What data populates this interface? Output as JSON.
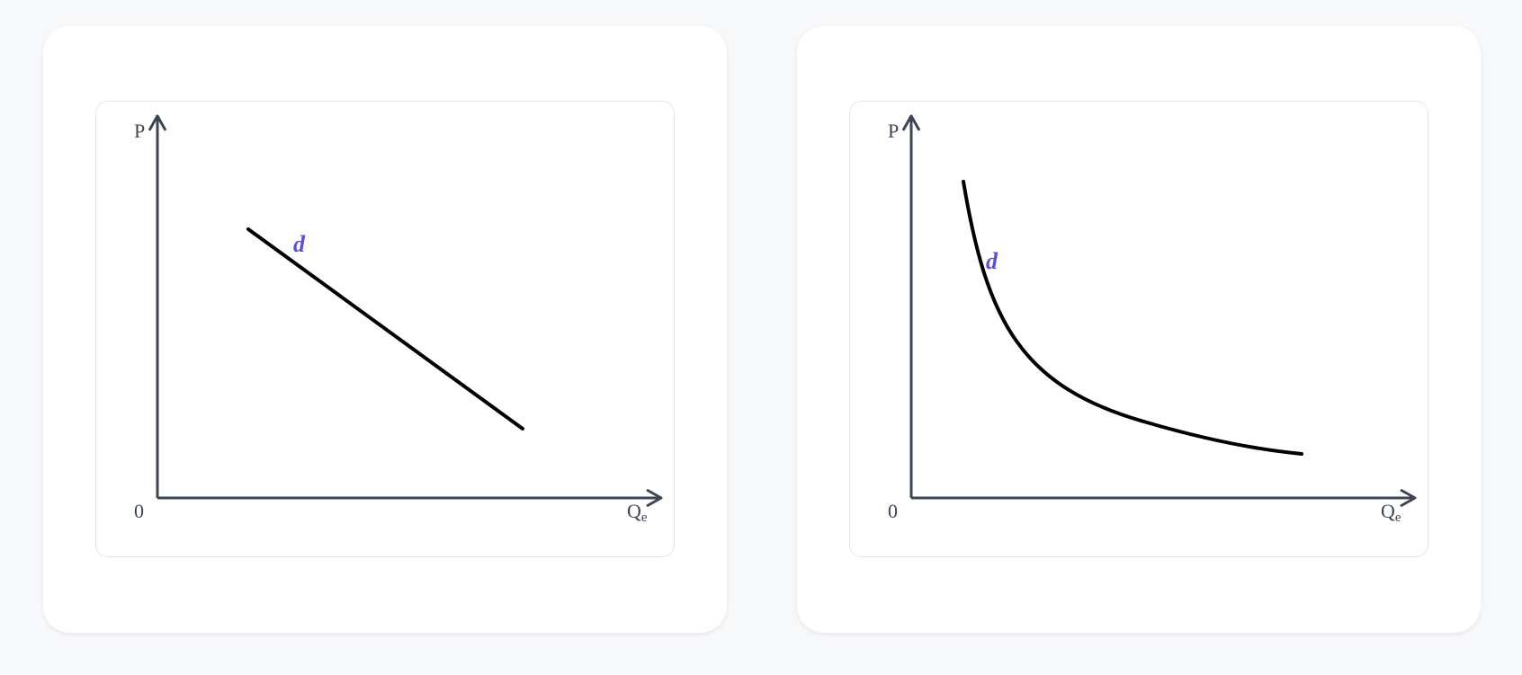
{
  "colors": {
    "axis": "#3d4554",
    "curve": "#000000",
    "curve_label": "#5a4fe0",
    "background": "#f7f8fa",
    "card": "#ffffff",
    "panel_border": "#e2e5ea"
  },
  "diagrams": [
    {
      "y_axis_label": "P",
      "x_axis_label": "Q",
      "x_axis_subscript": "e",
      "origin_label": "0",
      "curve_label": "d",
      "curve_shape": "straight line, downward sloping"
    },
    {
      "y_axis_label": "P",
      "x_axis_label": "Q",
      "x_axis_subscript": "e",
      "origin_label": "0",
      "curve_label": "d",
      "curve_shape": "convex curve, downward sloping"
    }
  ]
}
